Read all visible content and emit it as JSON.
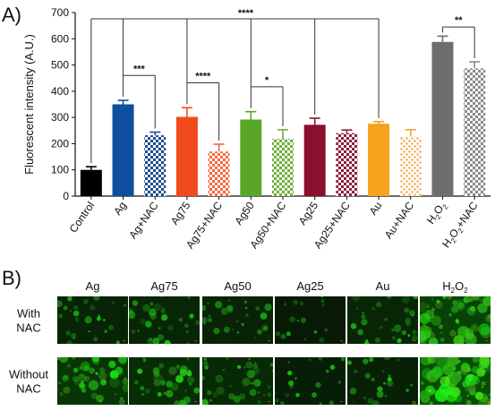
{
  "panel_a_label": "A)",
  "panel_b_label": "B)",
  "chart_data": {
    "type": "bar",
    "title": "",
    "xlabel": "",
    "ylabel": "Fluorescent intensity (A.U.)",
    "ylim": [
      0,
      700
    ],
    "yticks": [
      0,
      100,
      200,
      300,
      400,
      500,
      600,
      700
    ],
    "grid": false,
    "legend": "none",
    "categories": [
      "Control",
      "Ag",
      "Ag+NAC",
      "Ag75",
      "Ag75+NAC",
      "Ag50",
      "Ag50+NAC",
      "Ag25",
      "Ag25+NAC",
      "Au",
      "Au+NAC",
      "H2O2",
      "H2O2+NAC"
    ],
    "category_display": [
      {
        "base": "Control"
      },
      {
        "base": "Ag"
      },
      {
        "base": "Ag+NAC"
      },
      {
        "base": "Ag75"
      },
      {
        "base": "Ag75+NAC"
      },
      {
        "base": "Ag50"
      },
      {
        "base": "Ag50+NAC"
      },
      {
        "base": "Ag25"
      },
      {
        "base": "Ag25+NAC"
      },
      {
        "base": "Au"
      },
      {
        "base": "Au+NAC"
      },
      {
        "base": "H",
        "sub": "2",
        "mid": "O",
        "sub2": "2"
      },
      {
        "base": "H",
        "sub": "2",
        "mid": "O",
        "sub2": "2",
        "tail": "+NAC"
      }
    ],
    "values": [
      100,
      350,
      232,
      302,
      170,
      292,
      218,
      272,
      240,
      276,
      228,
      588,
      487
    ],
    "errors": [
      12,
      15,
      12,
      35,
      28,
      30,
      35,
      25,
      12,
      8,
      25,
      22,
      25
    ],
    "colors": [
      "#000000",
      "#0d4f9e",
      "#1b4e8c",
      "#f04a1c",
      "#f26a3d",
      "#59a728",
      "#6fae3a",
      "#8b0f2e",
      "#8c1f3a",
      "#f7a21b",
      "#f0a23a",
      "#6e6e6e",
      "#8a8a8a"
    ],
    "hatched": [
      false,
      false,
      true,
      false,
      true,
      false,
      true,
      false,
      true,
      false,
      true,
      false,
      true
    ],
    "hatch_style": [
      "solid",
      "solid",
      "checker",
      "solid",
      "checker",
      "solid",
      "checker",
      "solid",
      "checker",
      "solid",
      "dots",
      "solid",
      "checker"
    ],
    "significance": [
      {
        "from": 1,
        "to": 2,
        "label": "***"
      },
      {
        "from": 3,
        "to": 4,
        "label": "****"
      },
      {
        "from": 5,
        "to": 6,
        "label": "*"
      },
      {
        "from": 11,
        "to": 12,
        "label": "**"
      },
      {
        "from": 0,
        "to": 9,
        "label": "****",
        "drops": [
          1,
          3,
          5,
          7,
          9
        ]
      }
    ]
  },
  "micrographs": {
    "columns": [
      "Ag",
      "Ag75",
      "Ag50",
      "Ag25",
      "Au",
      "H2O2"
    ],
    "column_display": [
      {
        "base": "Ag"
      },
      {
        "base": "Ag75"
      },
      {
        "base": "Ag50"
      },
      {
        "base": "Ag25"
      },
      {
        "base": "Au"
      },
      {
        "base": "H",
        "sub": "2",
        "mid": "O",
        "sub2": "2"
      }
    ],
    "rows": [
      {
        "label_line1": "With",
        "label_line2": "NAC"
      },
      {
        "label_line1": "Without",
        "label_line2": "NAC"
      }
    ],
    "fluorescence_level": [
      [
        0.25,
        0.3,
        0.25,
        0.1,
        0.3,
        0.75
      ],
      [
        0.55,
        0.4,
        0.35,
        0.15,
        0.2,
        0.95
      ]
    ],
    "tint": "#3fbf2a"
  }
}
